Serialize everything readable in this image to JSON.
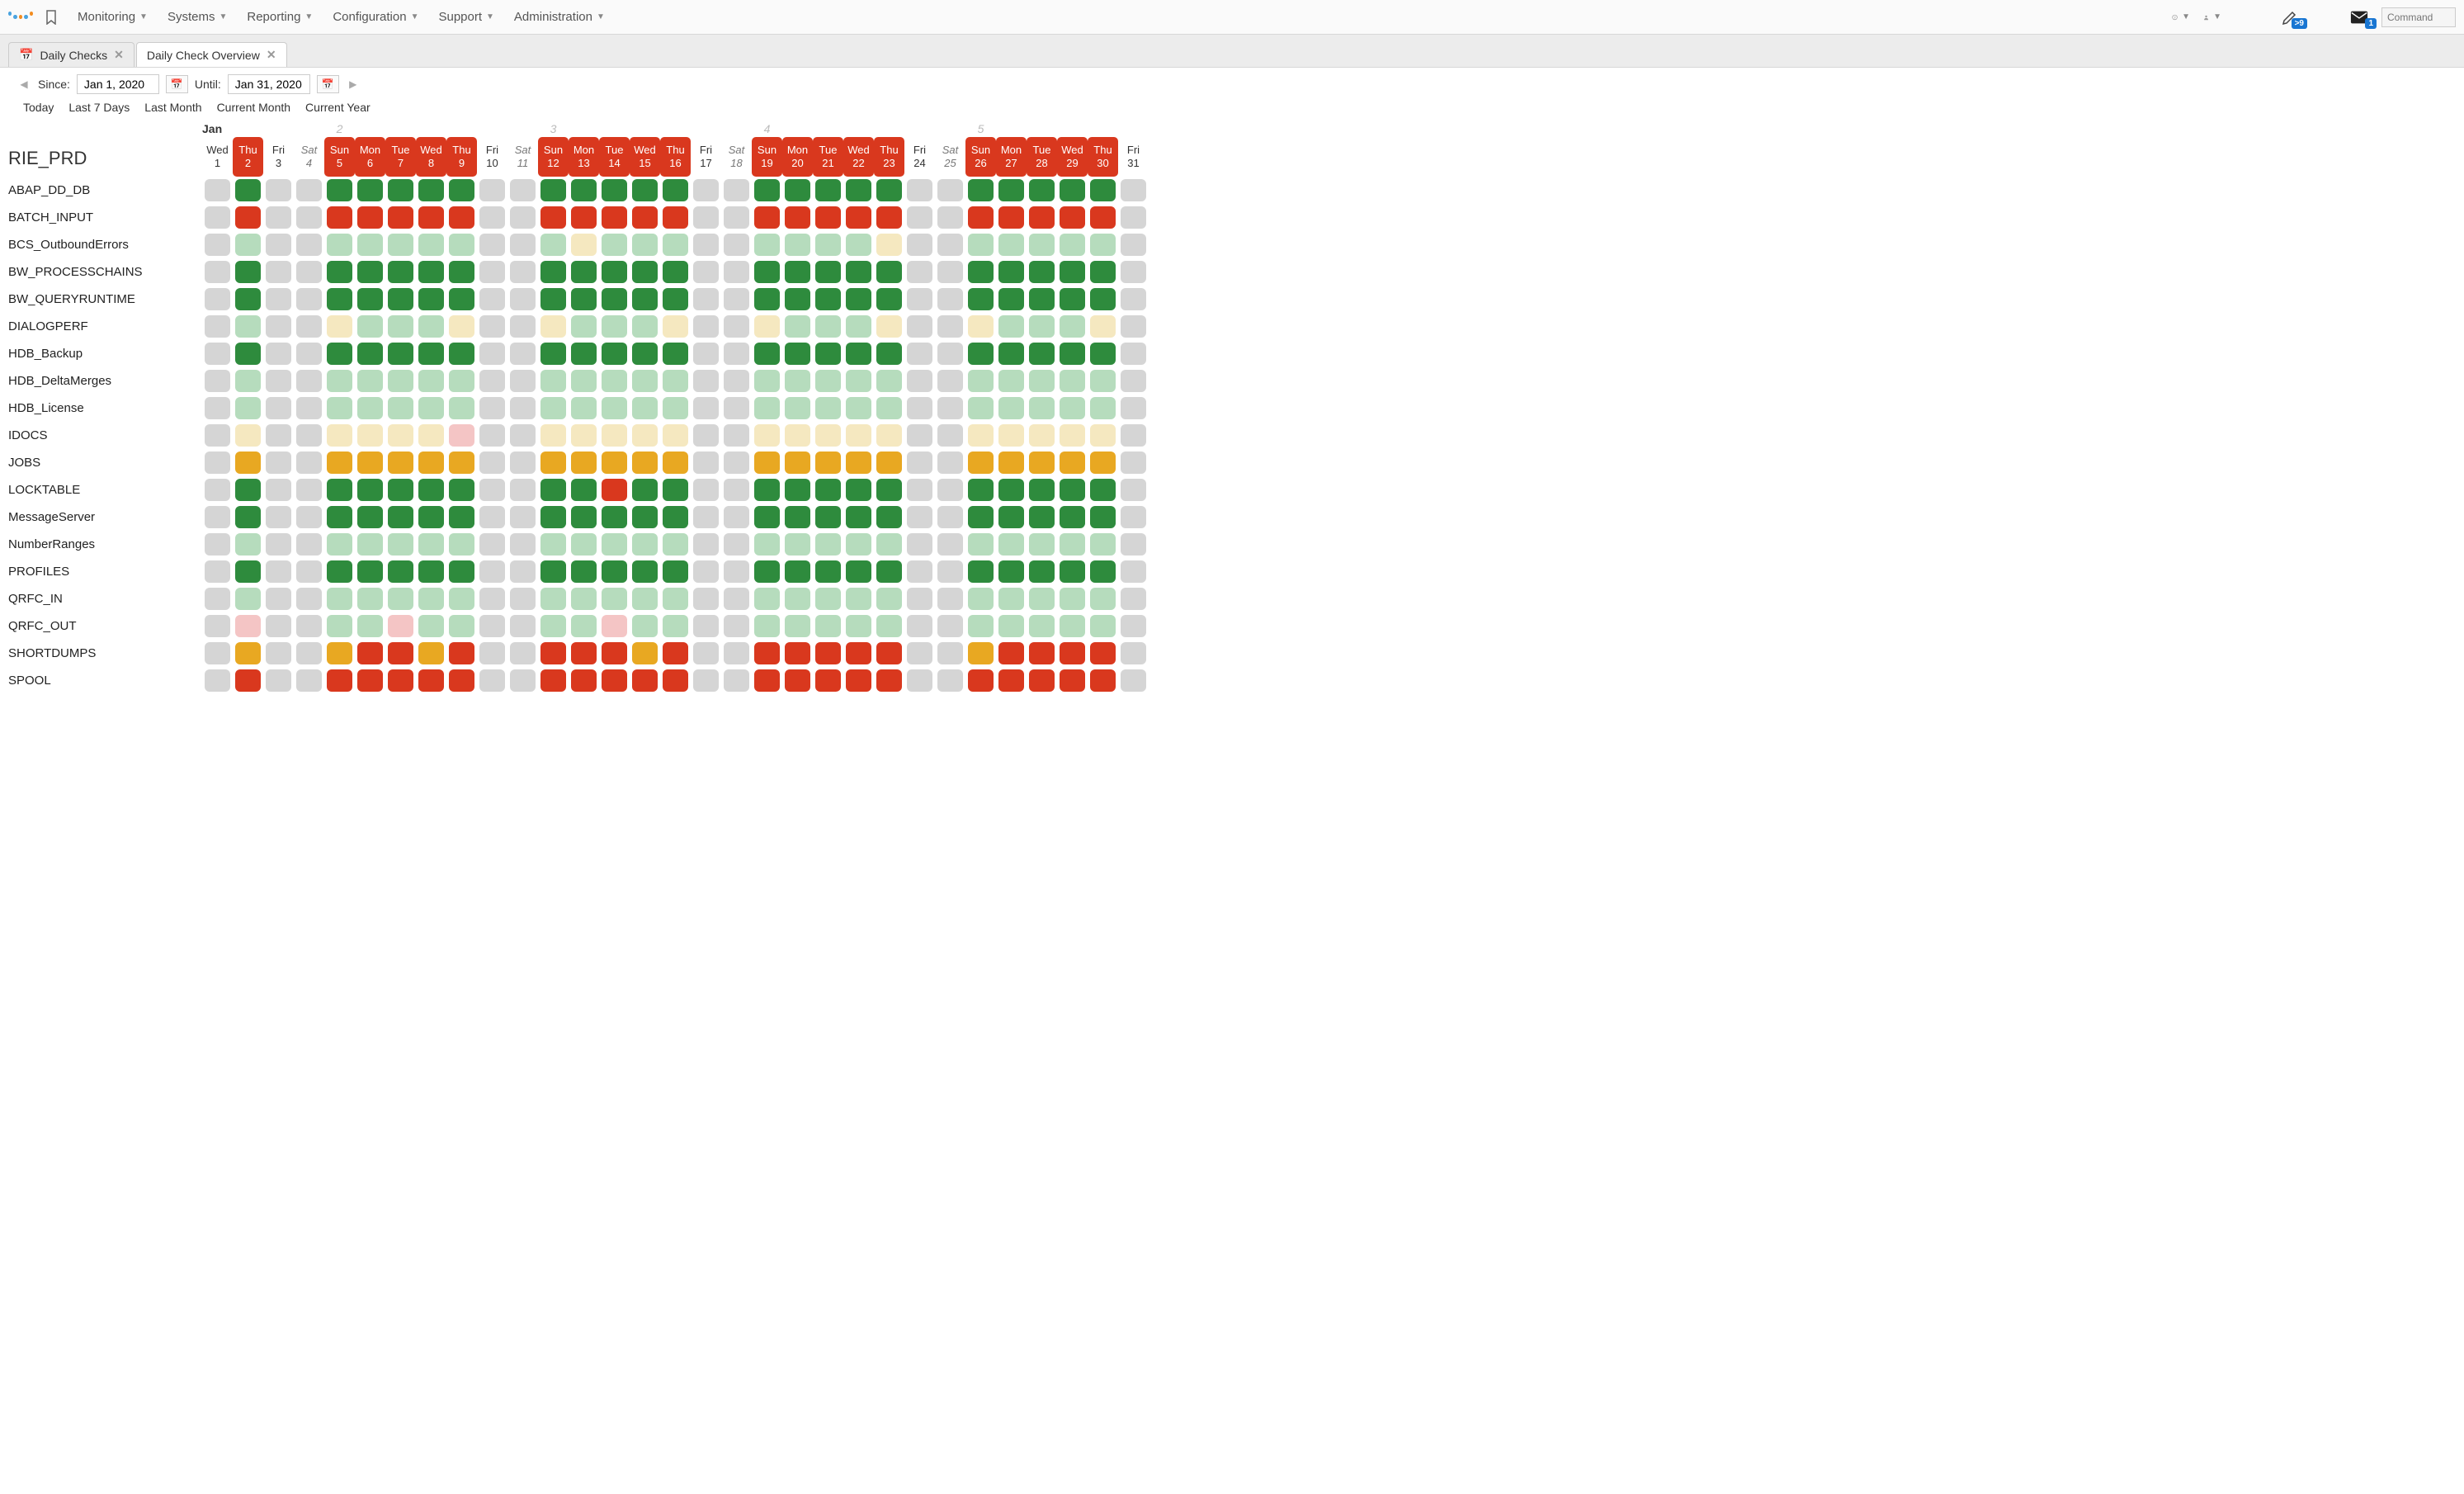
{
  "colors": {
    "gray": "#d5d5d5",
    "green": "#2e8b3d",
    "lightgreen": "#b6dcbd",
    "red": "#d9381e",
    "orange": "#e8a822",
    "cream": "#f5e8c0",
    "pink": "#f4c5c5",
    "highlight_bg": "#d9381e"
  },
  "logo_colors": [
    "#4aa3df",
    "#4aa3df",
    "#f28c1f",
    "#4aa3df",
    "#f28c1f"
  ],
  "topmenu": [
    "Monitoring",
    "Systems",
    "Reporting",
    "Configuration",
    "Support",
    "Administration"
  ],
  "top_icons": {
    "help": "?",
    "user": "👤",
    "pencil_badge": ">9",
    "mail_badge": "1"
  },
  "command_placeholder": "Command",
  "tabs": [
    {
      "icon": "📅",
      "label": "Daily Checks",
      "closable": true,
      "active": false
    },
    {
      "icon": "",
      "label": "Daily Check Overview",
      "closable": true,
      "active": true
    }
  ],
  "date_range": {
    "since_label": "Since:",
    "since": "Jan 1, 2020",
    "until_label": "Until:",
    "until": "Jan 31, 2020"
  },
  "quick_ranges": [
    "Today",
    "Last 7 Days",
    "Last Month",
    "Current Month",
    "Current Year"
  ],
  "month_label": "Jan",
  "week_numbers": {
    "5": "2",
    "12": "3",
    "19": "4",
    "26": "5"
  },
  "system_title": "RIE_PRD",
  "days": [
    {
      "dow": "Wed",
      "num": 1,
      "weekend": false,
      "hl": false
    },
    {
      "dow": "Thu",
      "num": 2,
      "weekend": false,
      "hl": true
    },
    {
      "dow": "Fri",
      "num": 3,
      "weekend": false,
      "hl": false
    },
    {
      "dow": "Sat",
      "num": 4,
      "weekend": true,
      "hl": false
    },
    {
      "dow": "Sun",
      "num": 5,
      "weekend": true,
      "hl": true
    },
    {
      "dow": "Mon",
      "num": 6,
      "weekend": false,
      "hl": true
    },
    {
      "dow": "Tue",
      "num": 7,
      "weekend": false,
      "hl": true
    },
    {
      "dow": "Wed",
      "num": 8,
      "weekend": false,
      "hl": true
    },
    {
      "dow": "Thu",
      "num": 9,
      "weekend": false,
      "hl": true
    },
    {
      "dow": "Fri",
      "num": 10,
      "weekend": false,
      "hl": false
    },
    {
      "dow": "Sat",
      "num": 11,
      "weekend": true,
      "hl": false
    },
    {
      "dow": "Sun",
      "num": 12,
      "weekend": true,
      "hl": true
    },
    {
      "dow": "Mon",
      "num": 13,
      "weekend": false,
      "hl": true
    },
    {
      "dow": "Tue",
      "num": 14,
      "weekend": false,
      "hl": true
    },
    {
      "dow": "Wed",
      "num": 15,
      "weekend": false,
      "hl": true
    },
    {
      "dow": "Thu",
      "num": 16,
      "weekend": false,
      "hl": true
    },
    {
      "dow": "Fri",
      "num": 17,
      "weekend": false,
      "hl": false
    },
    {
      "dow": "Sat",
      "num": 18,
      "weekend": true,
      "hl": false
    },
    {
      "dow": "Sun",
      "num": 19,
      "weekend": true,
      "hl": true
    },
    {
      "dow": "Mon",
      "num": 20,
      "weekend": false,
      "hl": true
    },
    {
      "dow": "Tue",
      "num": 21,
      "weekend": false,
      "hl": true
    },
    {
      "dow": "Wed",
      "num": 22,
      "weekend": false,
      "hl": true
    },
    {
      "dow": "Thu",
      "num": 23,
      "weekend": false,
      "hl": true
    },
    {
      "dow": "Fri",
      "num": 24,
      "weekend": false,
      "hl": false
    },
    {
      "dow": "Sat",
      "num": 25,
      "weekend": true,
      "hl": false
    },
    {
      "dow": "Sun",
      "num": 26,
      "weekend": true,
      "hl": true
    },
    {
      "dow": "Mon",
      "num": 27,
      "weekend": false,
      "hl": true
    },
    {
      "dow": "Tue",
      "num": 28,
      "weekend": false,
      "hl": true
    },
    {
      "dow": "Wed",
      "num": 29,
      "weekend": false,
      "hl": true
    },
    {
      "dow": "Thu",
      "num": 30,
      "weekend": false,
      "hl": true
    },
    {
      "dow": "Fri",
      "num": 31,
      "weekend": false,
      "hl": false
    }
  ],
  "rows": [
    {
      "label": "ABAP_DD_DB",
      "cells": [
        "gray",
        "green",
        "gray",
        "gray",
        "green",
        "green",
        "green",
        "green",
        "green",
        "gray",
        "gray",
        "green",
        "green",
        "green",
        "green",
        "green",
        "gray",
        "gray",
        "green",
        "green",
        "green",
        "green",
        "green",
        "gray",
        "gray",
        "green",
        "green",
        "green",
        "green",
        "green",
        "gray"
      ]
    },
    {
      "label": "BATCH_INPUT",
      "cells": [
        "gray",
        "red",
        "gray",
        "gray",
        "red",
        "red",
        "red",
        "red",
        "red",
        "gray",
        "gray",
        "red",
        "red",
        "red",
        "red",
        "red",
        "gray",
        "gray",
        "red",
        "red",
        "red",
        "red",
        "red",
        "gray",
        "gray",
        "red",
        "red",
        "red",
        "red",
        "red",
        "gray"
      ]
    },
    {
      "label": "BCS_OutboundErrors",
      "cells": [
        "gray",
        "lightgreen",
        "gray",
        "gray",
        "lightgreen",
        "lightgreen",
        "lightgreen",
        "lightgreen",
        "lightgreen",
        "gray",
        "gray",
        "lightgreen",
        "cream",
        "lightgreen",
        "lightgreen",
        "lightgreen",
        "gray",
        "gray",
        "lightgreen",
        "lightgreen",
        "lightgreen",
        "lightgreen",
        "cream",
        "gray",
        "gray",
        "lightgreen",
        "lightgreen",
        "lightgreen",
        "lightgreen",
        "lightgreen",
        "gray"
      ]
    },
    {
      "label": "BW_PROCESSCHAINS",
      "cells": [
        "gray",
        "green",
        "gray",
        "gray",
        "green",
        "green",
        "green",
        "green",
        "green",
        "gray",
        "gray",
        "green",
        "green",
        "green",
        "green",
        "green",
        "gray",
        "gray",
        "green",
        "green",
        "green",
        "green",
        "green",
        "gray",
        "gray",
        "green",
        "green",
        "green",
        "green",
        "green",
        "gray"
      ]
    },
    {
      "label": "BW_QUERYRUNTIME",
      "cells": [
        "gray",
        "green",
        "gray",
        "gray",
        "green",
        "green",
        "green",
        "green",
        "green",
        "gray",
        "gray",
        "green",
        "green",
        "green",
        "green",
        "green",
        "gray",
        "gray",
        "green",
        "green",
        "green",
        "green",
        "green",
        "gray",
        "gray",
        "green",
        "green",
        "green",
        "green",
        "green",
        "gray"
      ]
    },
    {
      "label": "DIALOGPERF",
      "cells": [
        "gray",
        "lightgreen",
        "gray",
        "gray",
        "cream",
        "lightgreen",
        "lightgreen",
        "lightgreen",
        "cream",
        "gray",
        "gray",
        "cream",
        "lightgreen",
        "lightgreen",
        "lightgreen",
        "cream",
        "gray",
        "gray",
        "cream",
        "lightgreen",
        "lightgreen",
        "lightgreen",
        "cream",
        "gray",
        "gray",
        "cream",
        "lightgreen",
        "lightgreen",
        "lightgreen",
        "cream",
        "gray"
      ]
    },
    {
      "label": "HDB_Backup",
      "cells": [
        "gray",
        "green",
        "gray",
        "gray",
        "green",
        "green",
        "green",
        "green",
        "green",
        "gray",
        "gray",
        "green",
        "green",
        "green",
        "green",
        "green",
        "gray",
        "gray",
        "green",
        "green",
        "green",
        "green",
        "green",
        "gray",
        "gray",
        "green",
        "green",
        "green",
        "green",
        "green",
        "gray"
      ]
    },
    {
      "label": "HDB_DeltaMerges",
      "cells": [
        "gray",
        "lightgreen",
        "gray",
        "gray",
        "lightgreen",
        "lightgreen",
        "lightgreen",
        "lightgreen",
        "lightgreen",
        "gray",
        "gray",
        "lightgreen",
        "lightgreen",
        "lightgreen",
        "lightgreen",
        "lightgreen",
        "gray",
        "gray",
        "lightgreen",
        "lightgreen",
        "lightgreen",
        "lightgreen",
        "lightgreen",
        "gray",
        "gray",
        "lightgreen",
        "lightgreen",
        "lightgreen",
        "lightgreen",
        "lightgreen",
        "gray"
      ]
    },
    {
      "label": "HDB_License",
      "cells": [
        "gray",
        "lightgreen",
        "gray",
        "gray",
        "lightgreen",
        "lightgreen",
        "lightgreen",
        "lightgreen",
        "lightgreen",
        "gray",
        "gray",
        "lightgreen",
        "lightgreen",
        "lightgreen",
        "lightgreen",
        "lightgreen",
        "gray",
        "gray",
        "lightgreen",
        "lightgreen",
        "lightgreen",
        "lightgreen",
        "lightgreen",
        "gray",
        "gray",
        "lightgreen",
        "lightgreen",
        "lightgreen",
        "lightgreen",
        "lightgreen",
        "gray"
      ]
    },
    {
      "label": "IDOCS",
      "cells": [
        "gray",
        "cream",
        "gray",
        "gray",
        "cream",
        "cream",
        "cream",
        "cream",
        "pink",
        "gray",
        "gray",
        "cream",
        "cream",
        "cream",
        "cream",
        "cream",
        "gray",
        "gray",
        "cream",
        "cream",
        "cream",
        "cream",
        "cream",
        "gray",
        "gray",
        "cream",
        "cream",
        "cream",
        "cream",
        "cream",
        "gray"
      ]
    },
    {
      "label": "JOBS",
      "cells": [
        "gray",
        "orange",
        "gray",
        "gray",
        "orange",
        "orange",
        "orange",
        "orange",
        "orange",
        "gray",
        "gray",
        "orange",
        "orange",
        "orange",
        "orange",
        "orange",
        "gray",
        "gray",
        "orange",
        "orange",
        "orange",
        "orange",
        "orange",
        "gray",
        "gray",
        "orange",
        "orange",
        "orange",
        "orange",
        "orange",
        "gray"
      ]
    },
    {
      "label": "LOCKTABLE",
      "cells": [
        "gray",
        "green",
        "gray",
        "gray",
        "green",
        "green",
        "green",
        "green",
        "green",
        "gray",
        "gray",
        "green",
        "green",
        "red",
        "green",
        "green",
        "gray",
        "gray",
        "green",
        "green",
        "green",
        "green",
        "green",
        "gray",
        "gray",
        "green",
        "green",
        "green",
        "green",
        "green",
        "gray"
      ]
    },
    {
      "label": "MessageServer",
      "cells": [
        "gray",
        "green",
        "gray",
        "gray",
        "green",
        "green",
        "green",
        "green",
        "green",
        "gray",
        "gray",
        "green",
        "green",
        "green",
        "green",
        "green",
        "gray",
        "gray",
        "green",
        "green",
        "green",
        "green",
        "green",
        "gray",
        "gray",
        "green",
        "green",
        "green",
        "green",
        "green",
        "gray"
      ]
    },
    {
      "label": "NumberRanges",
      "cells": [
        "gray",
        "lightgreen",
        "gray",
        "gray",
        "lightgreen",
        "lightgreen",
        "lightgreen",
        "lightgreen",
        "lightgreen",
        "gray",
        "gray",
        "lightgreen",
        "lightgreen",
        "lightgreen",
        "lightgreen",
        "lightgreen",
        "gray",
        "gray",
        "lightgreen",
        "lightgreen",
        "lightgreen",
        "lightgreen",
        "lightgreen",
        "gray",
        "gray",
        "lightgreen",
        "lightgreen",
        "lightgreen",
        "lightgreen",
        "lightgreen",
        "gray"
      ]
    },
    {
      "label": "PROFILES",
      "cells": [
        "gray",
        "green",
        "gray",
        "gray",
        "green",
        "green",
        "green",
        "green",
        "green",
        "gray",
        "gray",
        "green",
        "green",
        "green",
        "green",
        "green",
        "gray",
        "gray",
        "green",
        "green",
        "green",
        "green",
        "green",
        "gray",
        "gray",
        "green",
        "green",
        "green",
        "green",
        "green",
        "gray"
      ]
    },
    {
      "label": "QRFC_IN",
      "cells": [
        "gray",
        "lightgreen",
        "gray",
        "gray",
        "lightgreen",
        "lightgreen",
        "lightgreen",
        "lightgreen",
        "lightgreen",
        "gray",
        "gray",
        "lightgreen",
        "lightgreen",
        "lightgreen",
        "lightgreen",
        "lightgreen",
        "gray",
        "gray",
        "lightgreen",
        "lightgreen",
        "lightgreen",
        "lightgreen",
        "lightgreen",
        "gray",
        "gray",
        "lightgreen",
        "lightgreen",
        "lightgreen",
        "lightgreen",
        "lightgreen",
        "gray"
      ]
    },
    {
      "label": "QRFC_OUT",
      "cells": [
        "gray",
        "pink",
        "gray",
        "gray",
        "lightgreen",
        "lightgreen",
        "pink",
        "lightgreen",
        "lightgreen",
        "gray",
        "gray",
        "lightgreen",
        "lightgreen",
        "pink",
        "lightgreen",
        "lightgreen",
        "gray",
        "gray",
        "lightgreen",
        "lightgreen",
        "lightgreen",
        "lightgreen",
        "lightgreen",
        "gray",
        "gray",
        "lightgreen",
        "lightgreen",
        "lightgreen",
        "lightgreen",
        "lightgreen",
        "gray"
      ]
    },
    {
      "label": "SHORTDUMPS",
      "cells": [
        "gray",
        "orange",
        "gray",
        "gray",
        "orange",
        "red",
        "red",
        "orange",
        "red",
        "gray",
        "gray",
        "red",
        "red",
        "red",
        "orange",
        "red",
        "gray",
        "gray",
        "red",
        "red",
        "red",
        "red",
        "red",
        "gray",
        "gray",
        "orange",
        "red",
        "red",
        "red",
        "red",
        "gray"
      ]
    },
    {
      "label": "SPOOL",
      "cells": [
        "gray",
        "red",
        "gray",
        "gray",
        "red",
        "red",
        "red",
        "red",
        "red",
        "gray",
        "gray",
        "red",
        "red",
        "red",
        "red",
        "red",
        "gray",
        "gray",
        "red",
        "red",
        "red",
        "red",
        "red",
        "gray",
        "gray",
        "red",
        "red",
        "red",
        "red",
        "red",
        "gray"
      ]
    }
  ]
}
